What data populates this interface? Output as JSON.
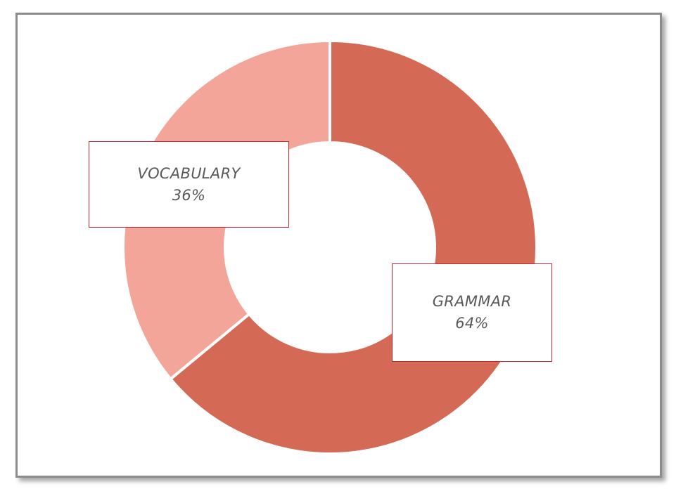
{
  "chart_data": {
    "type": "pie",
    "variant": "doughnut",
    "categories": [
      "GRAMMAR",
      "VOCABULARY"
    ],
    "values": [
      64,
      36
    ],
    "data_labels": [
      {
        "category": "GRAMMAR",
        "percent": "64%"
      },
      {
        "category": "VOCABULARY",
        "percent": "36%"
      }
    ],
    "colors": [
      "#d46a55",
      "#f3a59a"
    ],
    "label_border_color": "#c0262d",
    "legend": "none"
  }
}
